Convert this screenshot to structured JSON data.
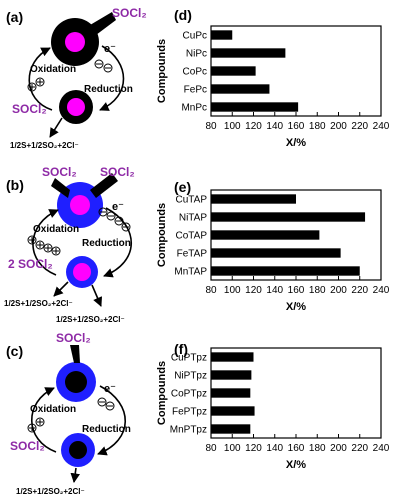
{
  "panels": {
    "a": {
      "label": "(a)",
      "reagent": "SOCl₂",
      "reagent_bottom": "SOCl₂",
      "electron": "e⁻",
      "oxidation": "Oxidation",
      "reduction": "Reduction",
      "product": "1/2S+1/2SO₂+2Cl⁻"
    },
    "b": {
      "label": "(b)",
      "reagent_left": "SOCl₂",
      "reagent_right": "SOCl₂",
      "reagent_bottom": "2 SOCl₂",
      "electron": "e⁻",
      "oxidation": "Oxidation",
      "reduction": "Reduction",
      "product_left": "1/2S+1/2SO₂+2Cl⁻",
      "product_right": "1/2S+1/2SO₂+2Cl⁻"
    },
    "c": {
      "label": "(c)",
      "reagent": "SOCl₂",
      "reagent_bottom": "SOCl₂",
      "electron": "e⁻",
      "oxidation": "Oxidation",
      "reduction": "Reduction",
      "product": "1/2S+1/2SO₂+2Cl⁻"
    }
  },
  "colors": {
    "reagent": "#8e2aa6",
    "magenta": "#ff00ff",
    "blue": "#1f1fff",
    "black": "#000000"
  },
  "chart_data": [
    {
      "panel": "(d)",
      "type": "bar",
      "orientation": "horizontal",
      "categories": [
        "CuPc",
        "NiPc",
        "CoPc",
        "FePc",
        "MnPc"
      ],
      "values": [
        100,
        150,
        122,
        135,
        162
      ],
      "ylabel": "Compounds",
      "xlabel": "X/%",
      "xlim": [
        80,
        240
      ],
      "xticks": [
        80,
        100,
        120,
        140,
        160,
        180,
        200,
        220,
        240
      ]
    },
    {
      "panel": "(e)",
      "type": "bar",
      "orientation": "horizontal",
      "categories": [
        "CuTAP",
        "NiTAP",
        "CoTAP",
        "FeTAP",
        "MnTAP"
      ],
      "values": [
        160,
        225,
        182,
        202,
        220
      ],
      "ylabel": "Compounds",
      "xlabel": "X/%",
      "xlim": [
        80,
        240
      ],
      "xticks": [
        80,
        100,
        120,
        140,
        160,
        180,
        200,
        220,
        240
      ]
    },
    {
      "panel": "(f)",
      "type": "bar",
      "orientation": "horizontal",
      "categories": [
        "CuPTpz",
        "NiPTpz",
        "CoPTpz",
        "FePTpz",
        "MnPTpz"
      ],
      "values": [
        120,
        118,
        117,
        121,
        117
      ],
      "ylabel": "Compounds",
      "xlabel": "X/%",
      "xlim": [
        80,
        240
      ],
      "xticks": [
        80,
        100,
        120,
        140,
        160,
        180,
        200,
        220,
        240
      ]
    }
  ]
}
